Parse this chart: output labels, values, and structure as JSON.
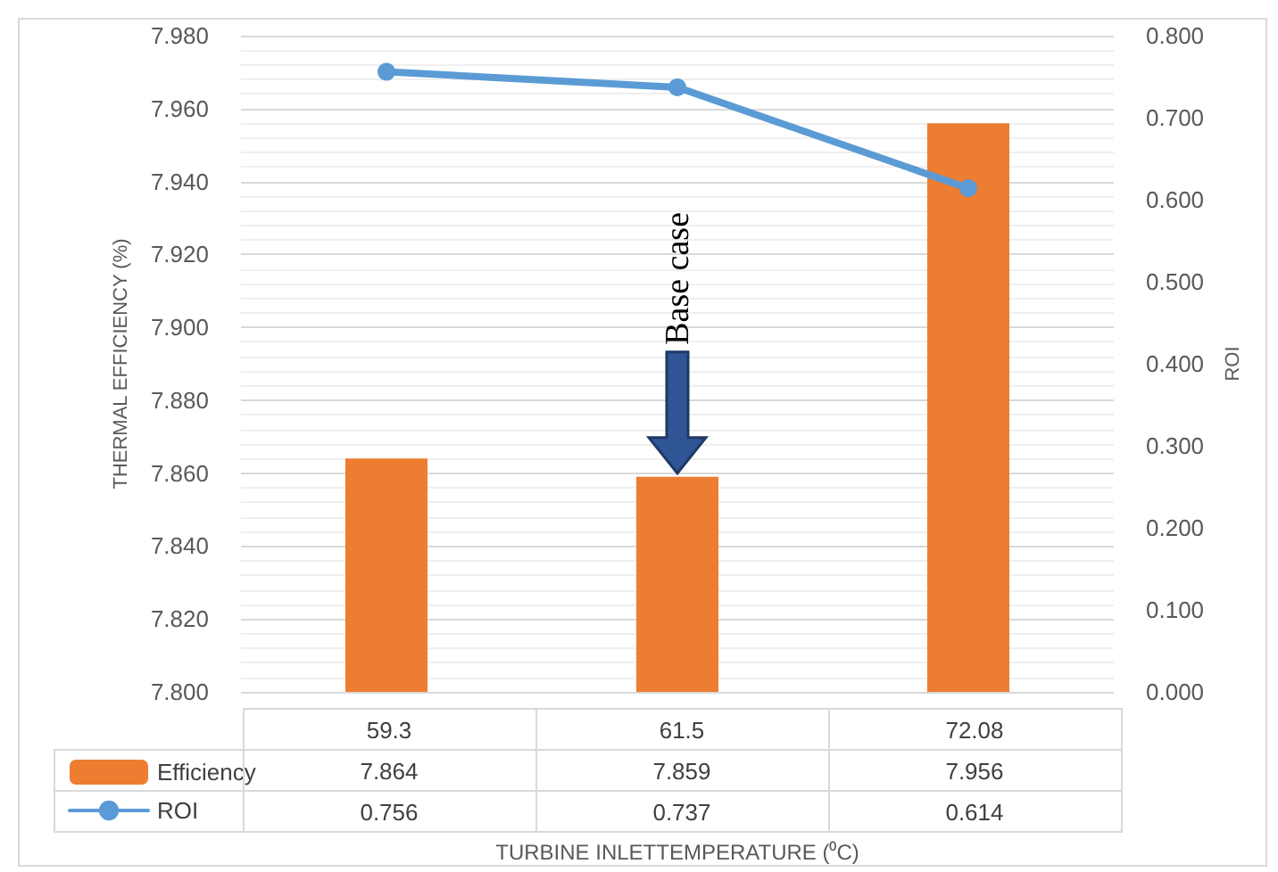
{
  "chart_data": {
    "type": "bar",
    "xlabel": "TURBINE INLETTEMPERATURE (⁰C)",
    "ylabel": "THERMAL EFFICIENCY (%)",
    "y2label": "ROI",
    "categories": [
      "59.3",
      "61.5",
      "72.08"
    ],
    "series": [
      {
        "name": "Efficiency",
        "color": "#ed7d31",
        "values": [
          7.864,
          7.859,
          7.956
        ]
      },
      {
        "name": "ROI",
        "type": "line",
        "axis": "y2",
        "color": "#5b9bd5",
        "values": [
          0.756,
          0.737,
          0.614
        ],
        "marker": "circle"
      }
    ],
    "ylim": [
      7.8,
      7.98
    ],
    "yticks": [
      {
        "value": 7.8,
        "label": "7.800"
      },
      {
        "value": 7.82,
        "label": "7.820"
      },
      {
        "value": 7.84,
        "label": "7.840"
      },
      {
        "value": 7.86,
        "label": "7.860"
      },
      {
        "value": 7.88,
        "label": "7.880"
      },
      {
        "value": 7.9,
        "label": "7.900"
      },
      {
        "value": 7.92,
        "label": "7.920"
      },
      {
        "value": 7.94,
        "label": "7.940"
      },
      {
        "value": 7.96,
        "label": "7.960"
      },
      {
        "value": 7.98,
        "label": "7.980"
      }
    ],
    "y2lim": [
      0,
      0.8
    ],
    "y2ticks": [
      {
        "value": 0,
        "label": "0.000"
      },
      {
        "value": 0.1,
        "label": "0.100"
      },
      {
        "value": 0.2,
        "label": "0.200"
      },
      {
        "value": 0.3,
        "label": "0.300"
      },
      {
        "value": 0.4,
        "label": "0.400"
      },
      {
        "value": 0.5,
        "label": "0.500"
      },
      {
        "value": 0.6,
        "label": "0.600"
      },
      {
        "value": 0.7,
        "label": "0.700"
      },
      {
        "value": 0.8,
        "label": "0.800"
      }
    ],
    "annotations": [
      "Base case"
    ],
    "grid": "y",
    "legend": "bottom",
    "data_labels": true
  }
}
